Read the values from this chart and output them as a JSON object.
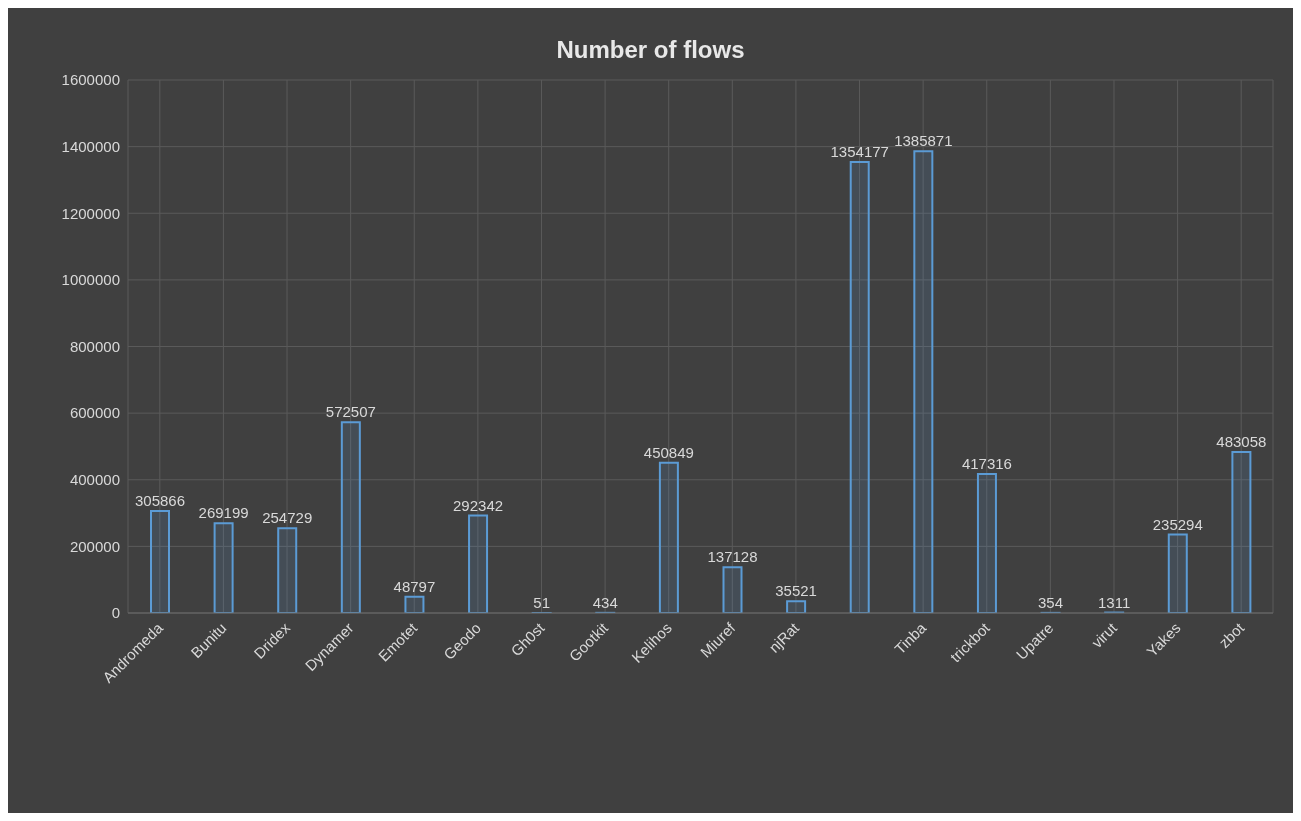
{
  "chart_data": {
    "type": "bar",
    "title": "Number of flows",
    "categories": [
      "Andromeda",
      "Bunitu",
      "Dridex",
      "Dynamer",
      "Emotet",
      "Geodo",
      "Gh0st",
      "Gootkit",
      "Kelihos",
      "Miuref",
      "njRat",
      null,
      "Tinba",
      "trickbot",
      "Upatre",
      "virut",
      "Yakes",
      "zbot"
    ],
    "values": [
      305866,
      269199,
      254729,
      572507,
      48797,
      292342,
      51,
      434,
      450849,
      137128,
      35521,
      1354177,
      1385871,
      417316,
      354,
      1311,
      235294,
      483058
    ],
    "color": "#5b9bd5",
    "ylim": [
      0,
      1600000
    ],
    "yticks": [
      0,
      200000,
      400000,
      600000,
      800000,
      1000000,
      1200000,
      1400000,
      1600000
    ],
    "grid": true,
    "data_labels": true
  }
}
